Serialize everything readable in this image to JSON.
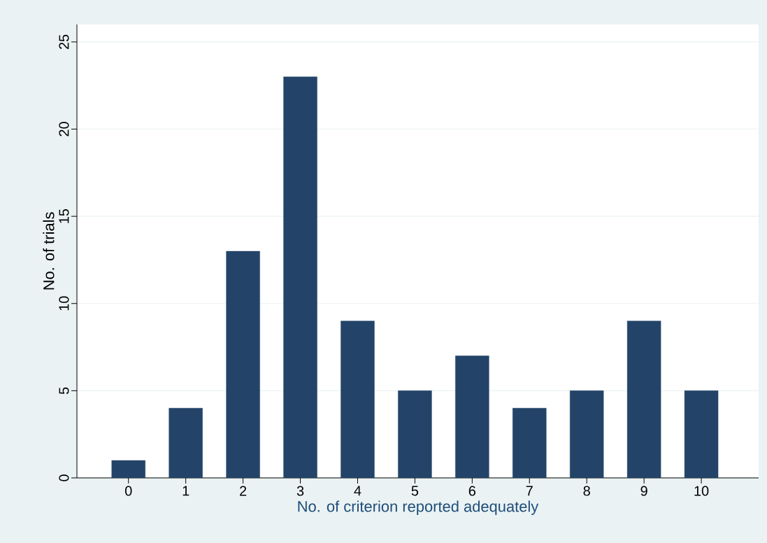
{
  "chart_data": {
    "type": "bar",
    "xlabel": "No. of criterion reported adequately",
    "ylabel": "No. of trials",
    "categories": [
      "0",
      "1",
      "2",
      "3",
      "4",
      "5",
      "6",
      "7",
      "8",
      "9",
      "10"
    ],
    "values": [
      1,
      4,
      13,
      23,
      9,
      5,
      7,
      4,
      5,
      9,
      5
    ],
    "color": "#234468",
    "ylim": [
      0,
      26
    ],
    "yticks": [
      0,
      5,
      10,
      15,
      20,
      25
    ],
    "grid": "y"
  }
}
